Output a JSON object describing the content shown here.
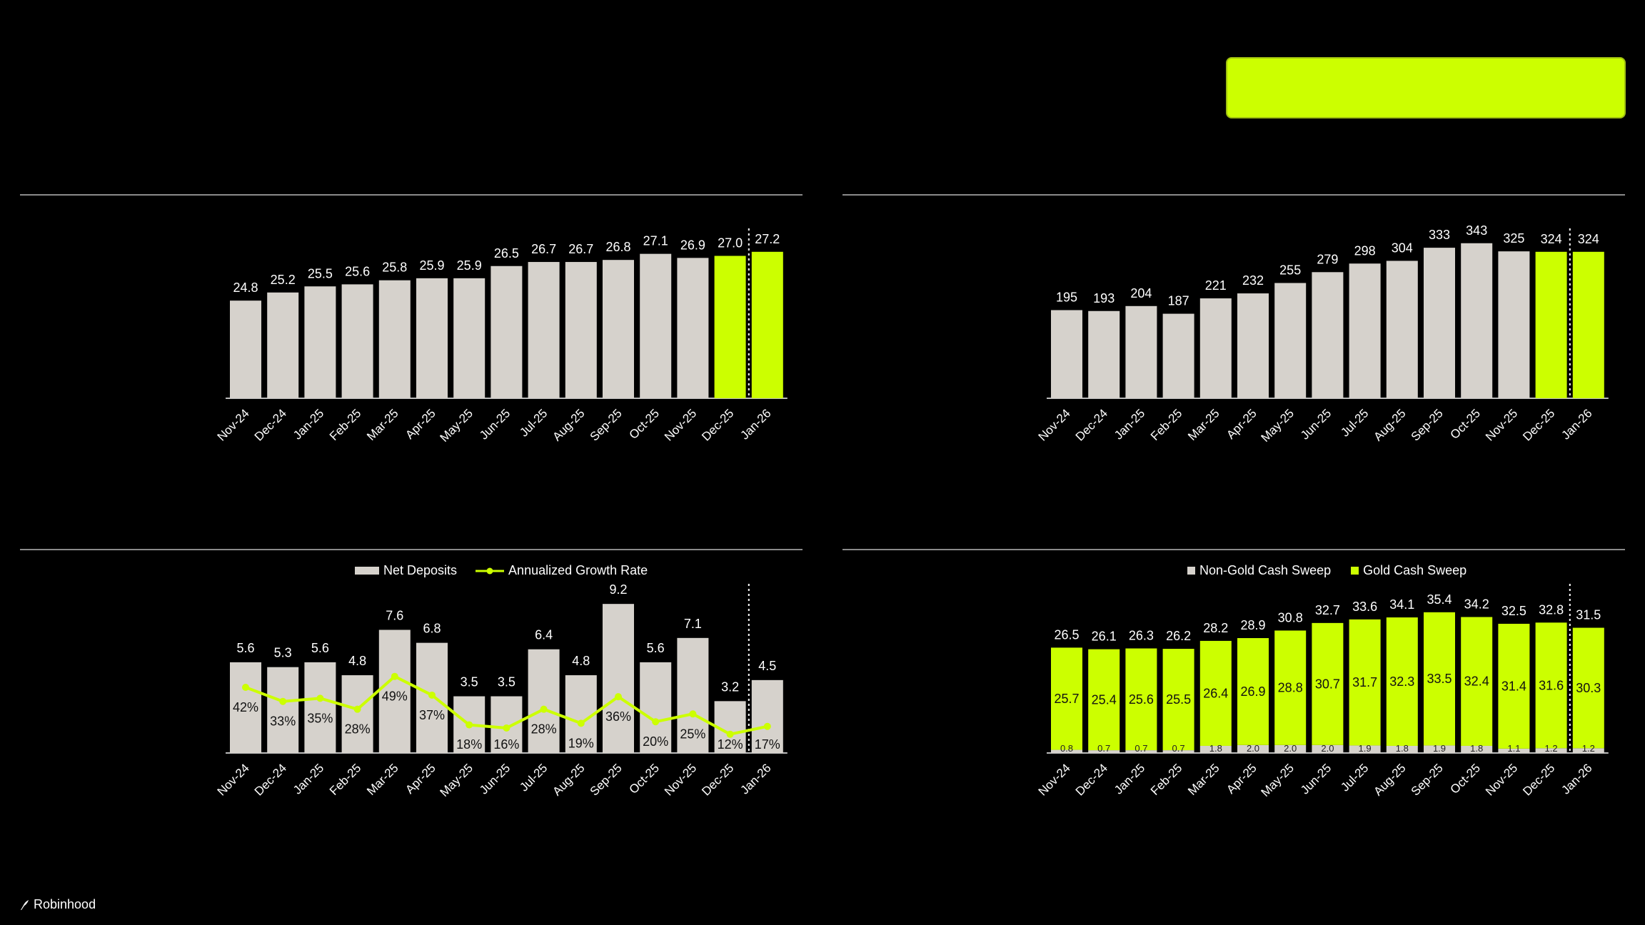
{
  "colors": {
    "lime": "#ccff00",
    "bar_gray": "#d6d2cc",
    "background": "#000000"
  },
  "logo": {
    "text": "Robinhood",
    "icon": "feather-icon"
  },
  "chart_data": [
    {
      "type": "bar",
      "id": "top-left",
      "categories": [
        "Nov-24",
        "Dec-24",
        "Jan-25",
        "Feb-25",
        "Mar-25",
        "Apr-25",
        "May-25",
        "Jun-25",
        "Jul-25",
        "Aug-25",
        "Sep-25",
        "Oct-25",
        "Nov-25",
        "Dec-25",
        "Jan-26"
      ],
      "values": [
        24.8,
        25.2,
        25.5,
        25.6,
        25.8,
        25.9,
        25.9,
        26.5,
        26.7,
        26.7,
        26.8,
        27.1,
        26.9,
        27.0,
        27.2
      ],
      "highlight": [
        "Dec-25",
        "Jan-26"
      ],
      "ylim": [
        20,
        28
      ]
    },
    {
      "type": "bar",
      "id": "top-right",
      "categories": [
        "Nov-24",
        "Dec-24",
        "Jan-25",
        "Feb-25",
        "Mar-25",
        "Apr-25",
        "May-25",
        "Jun-25",
        "Jul-25",
        "Aug-25",
        "Sep-25",
        "Oct-25",
        "Nov-25",
        "Dec-25",
        "Jan-26"
      ],
      "values": [
        195,
        193,
        204,
        187,
        221,
        232,
        255,
        279,
        298,
        304,
        333,
        343,
        325,
        324,
        324
      ],
      "highlight": [
        "Dec-25",
        "Jan-26"
      ],
      "ylim": [
        0,
        360
      ]
    },
    {
      "type": "bar",
      "id": "bottom-left",
      "legend": [
        "Net Deposits",
        "Annualized Growth Rate"
      ],
      "categories": [
        "Nov-24",
        "Dec-24",
        "Jan-25",
        "Feb-25",
        "Mar-25",
        "Apr-25",
        "May-25",
        "Jun-25",
        "Jul-25",
        "Aug-25",
        "Sep-25",
        "Oct-25",
        "Nov-25",
        "Dec-25",
        "Jan-26"
      ],
      "series": [
        {
          "name": "Net Deposits",
          "type": "bar",
          "values": [
            5.6,
            5.3,
            5.6,
            4.8,
            7.6,
            6.8,
            3.5,
            3.5,
            6.4,
            4.8,
            9.2,
            5.6,
            7.1,
            3.2,
            4.5
          ]
        },
        {
          "name": "Annualized Growth Rate",
          "type": "line",
          "unit": "%",
          "values": [
            42,
            33,
            35,
            28,
            49,
            37,
            18,
            16,
            28,
            19,
            36,
            20,
            25,
            12,
            17
          ]
        }
      ],
      "ylim": [
        0,
        10
      ]
    },
    {
      "type": "bar",
      "id": "bottom-right",
      "stacked": true,
      "legend": [
        "Non-Gold Cash Sweep",
        "Gold Cash Sweep"
      ],
      "categories": [
        "Nov-24",
        "Dec-24",
        "Jan-25",
        "Feb-25",
        "Mar-25",
        "Apr-25",
        "May-25",
        "Jun-25",
        "Jul-25",
        "Aug-25",
        "Sep-25",
        "Oct-25",
        "Nov-25",
        "Dec-25",
        "Jan-26"
      ],
      "totals": [
        26.5,
        26.1,
        26.3,
        26.2,
        28.2,
        28.9,
        30.8,
        32.7,
        33.6,
        34.1,
        35.4,
        34.2,
        32.5,
        32.8,
        31.5
      ],
      "series": [
        {
          "name": "Non-Gold Cash Sweep",
          "values": [
            0.8,
            0.7,
            0.7,
            0.7,
            1.8,
            2.0,
            2.0,
            2.0,
            1.9,
            1.8,
            1.9,
            1.8,
            1.1,
            1.2,
            1.2
          ]
        },
        {
          "name": "Gold Cash Sweep",
          "values": [
            25.7,
            25.4,
            25.6,
            25.5,
            26.4,
            26.9,
            28.8,
            30.7,
            31.7,
            32.3,
            33.5,
            32.4,
            31.4,
            31.6,
            30.3
          ]
        }
      ],
      "ylim": [
        0,
        38
      ]
    }
  ]
}
